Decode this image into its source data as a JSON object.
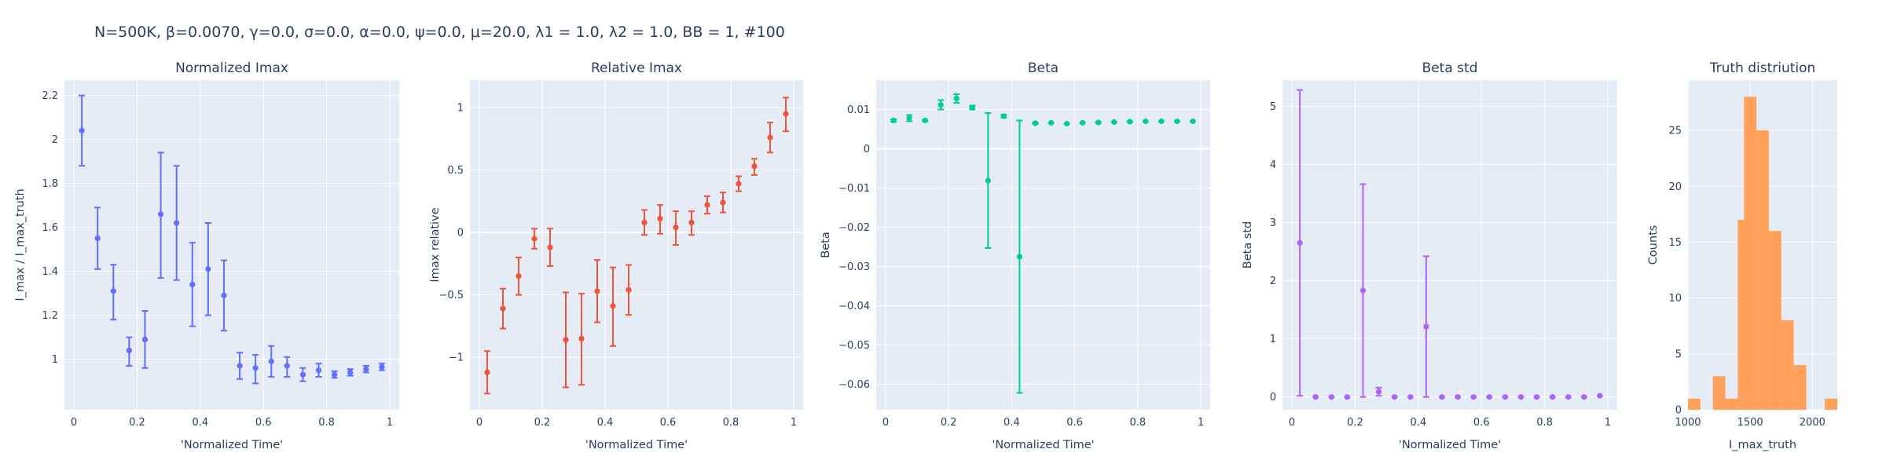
{
  "figure_title": "N=500K, β=0.0070, γ=0.0, σ=0.0,  α=0.0, ψ=0.0, μ=20.0, λ1 = 1.0, λ2 = 1.0, BB = 1, #100",
  "colors": {
    "plot_bg": "#E5ECF6",
    "grid": "#FFFFFF",
    "normalized": "#636EFA",
    "relative": "#EF553B",
    "beta": "#00CC96",
    "beta_std": "#AB63FA",
    "hist": "#FFA15A"
  },
  "chart_data": [
    {
      "id": "normalized",
      "type": "scatter",
      "title": "Normalized Imax",
      "xlabel": "'Normalized Time'",
      "ylabel": "I_max / I_max_truth",
      "xlim": [
        -0.03,
        1.03
      ],
      "ylim": [
        0.77,
        2.27
      ],
      "xticks": [
        0,
        0.2,
        0.4,
        0.6,
        0.8,
        1
      ],
      "xtick_labels": [
        "0",
        "0.2",
        "0.4",
        "0.6",
        "0.8",
        "1"
      ],
      "yticks": [
        1,
        1.2,
        1.4,
        1.6,
        1.8,
        2,
        2.2
      ],
      "ytick_labels": [
        "1",
        "1.2",
        "1.4",
        "1.6",
        "1.8",
        "2",
        "2.2"
      ],
      "color": "#636EFA",
      "x": [
        0.025,
        0.075,
        0.125,
        0.175,
        0.225,
        0.275,
        0.325,
        0.375,
        0.425,
        0.475,
        0.525,
        0.575,
        0.625,
        0.675,
        0.725,
        0.775,
        0.825,
        0.875,
        0.925,
        0.975
      ],
      "y": [
        2.04,
        1.55,
        1.31,
        1.04,
        1.09,
        1.66,
        1.62,
        1.34,
        1.41,
        1.29,
        0.97,
        0.96,
        0.99,
        0.97,
        0.93,
        0.95,
        0.93,
        0.94,
        0.955,
        0.965
      ],
      "err_lo": [
        0.16,
        0.14,
        0.13,
        0.07,
        0.13,
        0.29,
        0.26,
        0.19,
        0.21,
        0.16,
        0.06,
        0.07,
        0.07,
        0.05,
        0.03,
        0.03,
        0.015,
        0.015,
        0.015,
        0.015
      ],
      "err_hi": [
        0.16,
        0.14,
        0.12,
        0.06,
        0.13,
        0.28,
        0.26,
        0.19,
        0.21,
        0.16,
        0.06,
        0.06,
        0.07,
        0.04,
        0.03,
        0.03,
        0.015,
        0.015,
        0.015,
        0.015
      ]
    },
    {
      "id": "relative",
      "type": "scatter",
      "title": "Relative Imax",
      "xlabel": "'Normalized Time'",
      "ylabel": "Imax relative",
      "xlim": [
        -0.03,
        1.03
      ],
      "ylim": [
        -1.42,
        1.22
      ],
      "xticks": [
        0,
        0.2,
        0.4,
        0.6,
        0.8,
        1
      ],
      "xtick_labels": [
        "0",
        "0.2",
        "0.4",
        "0.6",
        "0.8",
        "1"
      ],
      "yticks": [
        -1,
        -0.5,
        0,
        0.5,
        1
      ],
      "ytick_labels": [
        "−1",
        "−0.5",
        "0",
        "0.5",
        "1"
      ],
      "color": "#EF553B",
      "x": [
        0.025,
        0.075,
        0.125,
        0.175,
        0.225,
        0.275,
        0.325,
        0.375,
        0.425,
        0.475,
        0.525,
        0.575,
        0.625,
        0.675,
        0.725,
        0.775,
        0.825,
        0.875,
        0.925,
        0.975
      ],
      "y": [
        -1.12,
        -0.61,
        -0.35,
        -0.05,
        -0.12,
        -0.86,
        -0.85,
        -0.47,
        -0.59,
        -0.46,
        0.08,
        0.11,
        0.04,
        0.08,
        0.22,
        0.24,
        0.39,
        0.53,
        0.76,
        0.95
      ],
      "err_lo": [
        0.17,
        0.16,
        0.15,
        0.08,
        0.15,
        0.38,
        0.37,
        0.25,
        0.32,
        0.2,
        0.1,
        0.12,
        0.14,
        0.1,
        0.07,
        0.08,
        0.06,
        0.07,
        0.12,
        0.14
      ],
      "err_hi": [
        0.17,
        0.16,
        0.15,
        0.08,
        0.15,
        0.38,
        0.36,
        0.25,
        0.31,
        0.2,
        0.1,
        0.11,
        0.13,
        0.09,
        0.07,
        0.08,
        0.06,
        0.06,
        0.12,
        0.13
      ]
    },
    {
      "id": "beta",
      "type": "scatter",
      "title": "Beta",
      "xlabel": "'Normalized Time'",
      "ylabel": "Beta",
      "xlim": [
        -0.03,
        1.03
      ],
      "ylim": [
        -0.0665,
        0.0175
      ],
      "xticks": [
        0,
        0.2,
        0.4,
        0.6,
        0.8,
        1
      ],
      "xtick_labels": [
        "0",
        "0.2",
        "0.4",
        "0.6",
        "0.8",
        "1"
      ],
      "yticks": [
        0.01,
        0,
        -0.01,
        -0.02,
        -0.03,
        -0.04,
        -0.05,
        -0.06
      ],
      "ytick_labels": [
        "0.01",
        "0",
        "−0.01",
        "−0.02",
        "−0.03",
        "−0.04",
        "−0.05",
        "−0.06"
      ],
      "color": "#00CC96",
      "x": [
        0.025,
        0.075,
        0.125,
        0.175,
        0.225,
        0.275,
        0.325,
        0.375,
        0.425,
        0.475,
        0.525,
        0.575,
        0.625,
        0.675,
        0.725,
        0.775,
        0.825,
        0.875,
        0.925,
        0.975
      ],
      "y": [
        0.0072,
        0.0078,
        0.0072,
        0.0112,
        0.0128,
        0.0105,
        -0.0081,
        0.0083,
        -0.0275,
        0.0065,
        0.0066,
        0.0064,
        0.0066,
        0.0067,
        0.0068,
        0.0069,
        0.007,
        0.007,
        0.007,
        0.007
      ],
      "err_lo": [
        0.0003,
        0.0008,
        0.0002,
        0.0012,
        0.0011,
        0.0005,
        0.0172,
        0.0004,
        0.0347,
        0.0002,
        0.0001,
        0.0001,
        0.0001,
        0.0001,
        0.0001,
        0.0001,
        0.0001,
        0.0001,
        0.0001,
        0.0001
      ],
      "err_hi": [
        0.0003,
        0.0008,
        0.0002,
        0.0012,
        0.0011,
        0.0005,
        0.0172,
        0.0004,
        0.0347,
        0.0002,
        0.0001,
        0.0001,
        0.0001,
        0.0001,
        0.0001,
        0.0001,
        0.0001,
        0.0001,
        0.0001,
        0.0001
      ]
    },
    {
      "id": "beta_std",
      "type": "scatter",
      "title": "Beta std",
      "xlabel": "'Normalized Time'",
      "ylabel": "Beta std",
      "xlim": [
        -0.03,
        1.03
      ],
      "ylim": [
        -0.22,
        5.45
      ],
      "xticks": [
        0,
        0.2,
        0.4,
        0.6,
        0.8,
        1
      ],
      "xtick_labels": [
        "0",
        "0.2",
        "0.4",
        "0.6",
        "0.8",
        "1"
      ],
      "yticks": [
        0,
        1,
        2,
        3,
        4,
        5
      ],
      "ytick_labels": [
        "0",
        "1",
        "2",
        "3",
        "4",
        "5"
      ],
      "color": "#AB63FA",
      "x": [
        0.025,
        0.075,
        0.125,
        0.175,
        0.225,
        0.275,
        0.325,
        0.375,
        0.425,
        0.475,
        0.525,
        0.575,
        0.625,
        0.675,
        0.725,
        0.775,
        0.825,
        0.875,
        0.925,
        0.975
      ],
      "y": [
        2.65,
        0.0,
        0.0,
        0.0,
        1.83,
        0.09,
        0.0,
        0.0,
        1.21,
        0.0,
        0.0,
        0.0,
        0.0,
        0.0,
        0.0,
        0.0,
        0.0,
        0.0,
        0.0,
        0.02
      ],
      "err_lo": [
        2.63,
        0.0,
        0.0,
        0.0,
        1.83,
        0.07,
        0.0,
        0.0,
        1.21,
        0.0,
        0.0,
        0.0,
        0.0,
        0.0,
        0.0,
        0.0,
        0.0,
        0.0,
        0.0,
        0.0
      ],
      "err_hi": [
        2.63,
        0.0,
        0.0,
        0.0,
        1.83,
        0.07,
        0.0,
        0.0,
        1.21,
        0.0,
        0.0,
        0.0,
        0.0,
        0.0,
        0.0,
        0.0,
        0.0,
        0.0,
        0.0,
        0.0
      ]
    },
    {
      "id": "truth",
      "type": "histogram",
      "title": "Truth distriution",
      "xlabel": "I_max_truth",
      "ylabel": "Counts",
      "xlim": [
        1000,
        2200
      ],
      "ylim": [
        0,
        29.5
      ],
      "xticks": [
        1000,
        1500,
        2000
      ],
      "xtick_labels": [
        "1000",
        "1500",
        "2000"
      ],
      "yticks": [
        0,
        5,
        10,
        15,
        20,
        25
      ],
      "ytick_labels": [
        "0",
        "5",
        "10",
        "15",
        "20",
        "25"
      ],
      "color": "#FFA15A",
      "bin_width": 100,
      "bins": [
        {
          "x0": 1000,
          "count": 1
        },
        {
          "x0": 1100,
          "count": 0
        },
        {
          "x0": 1200,
          "count": 3
        },
        {
          "x0": 1300,
          "count": 1
        },
        {
          "x0": 1400,
          "count": 17
        },
        {
          "x0": 1450,
          "count": 28
        },
        {
          "x0": 1550,
          "count": 25
        },
        {
          "x0": 1650,
          "count": 16
        },
        {
          "x0": 1750,
          "count": 8
        },
        {
          "x0": 1850,
          "count": 4
        },
        {
          "x0": 1950,
          "count": 0
        },
        {
          "x0": 2050,
          "count": 0
        },
        {
          "x0": 2100,
          "count": 1
        }
      ]
    }
  ]
}
